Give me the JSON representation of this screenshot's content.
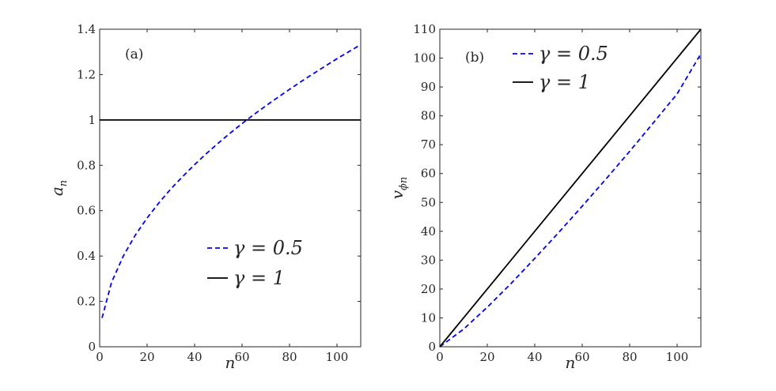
{
  "chart_data": [
    {
      "type": "line",
      "panel_label": "(a)",
      "xlabel": "n",
      "ylabel_base": "a",
      "ylabel_sub": "n",
      "xlim": [
        0,
        110
      ],
      "ylim": [
        0,
        1.4
      ],
      "xticks": [
        0,
        20,
        40,
        60,
        80,
        100
      ],
      "yticks": [
        0,
        0.2,
        0.4,
        0.6,
        0.8,
        1,
        1.2,
        1.4
      ],
      "xtick_labels": [
        "0",
        "20",
        "40",
        "60",
        "80",
        "100"
      ],
      "ytick_labels": [
        "0",
        "0.2",
        "0.4",
        "0.6",
        "0.8",
        "1",
        "1.2",
        "1.4"
      ],
      "grid": false,
      "legend_position": "lower-right",
      "series": [
        {
          "name": "γ = 0.5",
          "style": "dashed",
          "color": "#0000ff",
          "x": [
            1,
            5,
            10,
            15,
            20,
            25,
            30,
            35,
            40,
            45,
            50,
            55,
            60,
            65,
            70,
            75,
            80,
            85,
            90,
            95,
            100,
            105,
            110
          ],
          "y": [
            0.127,
            0.284,
            0.401,
            0.492,
            0.568,
            0.635,
            0.696,
            0.751,
            0.803,
            0.852,
            0.898,
            0.942,
            0.984,
            1.024,
            1.062,
            1.099,
            1.135,
            1.17,
            1.204,
            1.237,
            1.27,
            1.301,
            1.332
          ]
        },
        {
          "name": "γ = 1",
          "style": "solid",
          "color": "#000000",
          "x": [
            0,
            110
          ],
          "y": [
            1,
            1
          ]
        }
      ]
    },
    {
      "type": "line",
      "panel_label": "(b)",
      "xlabel": "n",
      "ylabel_base": "v",
      "ylabel_sub": "ϕn",
      "xlim": [
        0,
        110
      ],
      "ylim": [
        0,
        110
      ],
      "xticks": [
        0,
        20,
        40,
        60,
        80,
        100
      ],
      "yticks": [
        0,
        10,
        20,
        30,
        40,
        50,
        60,
        70,
        80,
        90,
        100,
        110
      ],
      "xtick_labels": [
        "0",
        "20",
        "40",
        "60",
        "80",
        "100"
      ],
      "ytick_labels": [
        "0",
        "10",
        "20",
        "30",
        "40",
        "50",
        "60",
        "70",
        "80",
        "90",
        "100",
        "110"
      ],
      "grid": false,
      "legend_position": "top-left",
      "series": [
        {
          "name": "γ = 0.5",
          "style": "dashed",
          "color": "#0000ff",
          "x": [
            0,
            10,
            20,
            30,
            40,
            50,
            60,
            70,
            80,
            90,
            100,
            110
          ],
          "y": [
            0,
            6.1,
            13.7,
            21.9,
            30.6,
            39.5,
            48.7,
            58.1,
            67.7,
            77.6,
            87.6,
            101.5
          ]
        },
        {
          "name": "γ = 1",
          "style": "solid",
          "color": "#000000",
          "x": [
            0,
            110
          ],
          "y": [
            0,
            110
          ]
        }
      ]
    }
  ]
}
